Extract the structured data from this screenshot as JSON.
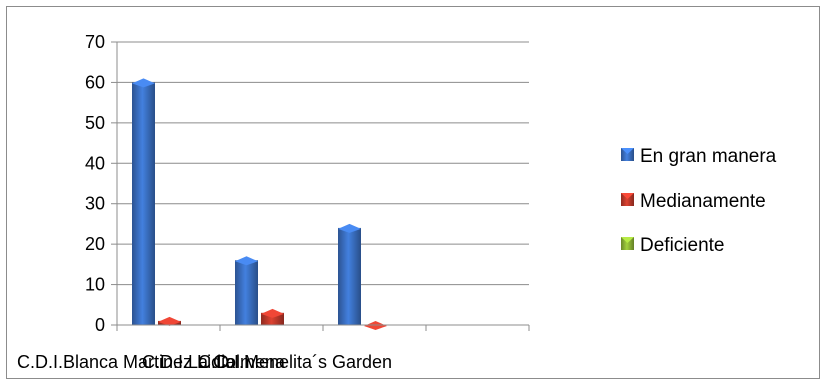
{
  "chart_data": {
    "type": "bar",
    "categories": [
      "C.D.I.Blanca Martinez Lidia",
      "C.D.I.La Colmena",
      "C.D.I.Menelita´s Garden"
    ],
    "series": [
      {
        "name": "En gran manera",
        "values": [
          61,
          17,
          25
        ],
        "color": "#3a6fc2"
      },
      {
        "name": "Medianamente",
        "values": [
          2,
          4,
          1
        ],
        "color": "#c0392b"
      },
      {
        "name": "Deficiente",
        "values": [
          0,
          0,
          0
        ],
        "color": "#8db536"
      }
    ],
    "ylim": [
      0,
      70
    ],
    "yticks": [
      0,
      10,
      20,
      30,
      40,
      50,
      60,
      70
    ],
    "grid": true,
    "legend_position": "right",
    "title": "",
    "xlabel": "",
    "ylabel": ""
  }
}
